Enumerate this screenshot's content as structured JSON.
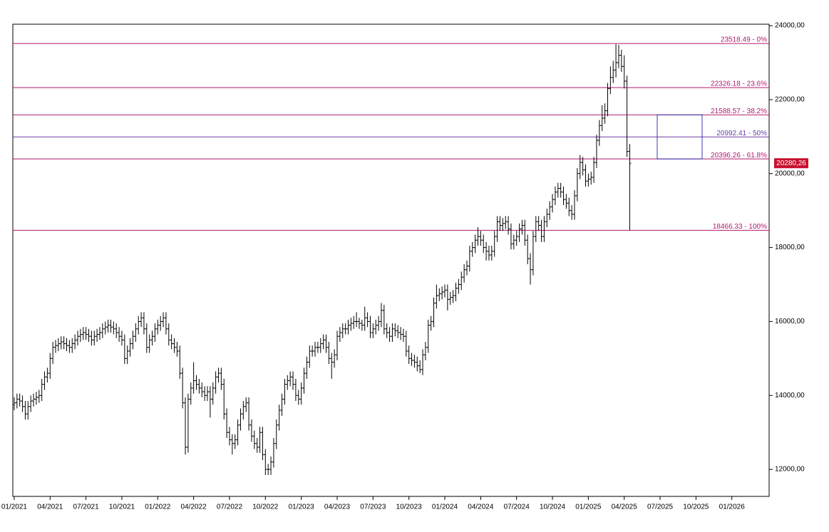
{
  "chart_data": {
    "type": "ohlc",
    "color": "#000000",
    "categories": [
      "01/2021",
      null,
      null,
      null,
      null,
      null,
      null,
      null,
      null,
      null,
      null,
      null,
      null,
      "04/2021",
      null,
      null,
      null,
      null,
      null,
      null,
      null,
      null,
      null,
      null,
      null,
      null,
      "07/2021",
      null,
      null,
      null,
      null,
      null,
      null,
      null,
      null,
      null,
      null,
      null,
      null,
      "10/2021",
      null,
      null,
      null,
      null,
      null,
      null,
      null,
      null,
      null,
      null,
      null,
      null,
      "01/2022",
      null,
      null,
      null,
      null,
      null,
      null,
      null,
      null,
      null,
      null,
      null,
      null,
      "04/2022",
      null,
      null,
      null,
      null,
      null,
      null,
      null,
      null,
      null,
      null,
      null,
      null,
      "07/2022",
      null,
      null,
      null,
      null,
      null,
      null,
      null,
      null,
      null,
      null,
      null,
      null,
      "10/2022",
      null,
      null,
      null,
      null,
      null,
      null,
      null,
      null,
      null,
      null,
      null,
      null,
      "01/2023",
      null,
      null,
      null,
      null,
      null,
      null,
      null,
      null,
      null,
      null,
      null,
      null,
      "04/2023",
      null,
      null,
      null,
      null,
      null,
      null,
      null,
      null,
      null,
      null,
      null,
      null,
      "07/2023",
      null,
      null,
      null,
      null,
      null,
      null,
      null,
      null,
      null,
      null,
      null,
      null,
      "10/2023",
      null,
      null,
      null,
      null,
      null,
      null,
      null,
      null,
      null,
      null,
      null,
      null,
      "01/2024",
      null,
      null,
      null,
      null,
      null,
      null,
      null,
      null,
      null,
      null,
      null,
      null,
      "04/2024",
      null,
      null,
      null,
      null,
      null,
      null,
      null,
      null,
      null,
      null,
      null,
      null,
      "07/2024",
      null,
      null,
      null,
      null,
      null,
      null,
      null,
      null,
      null,
      null,
      null,
      null,
      "10/2024",
      null,
      null,
      null,
      null,
      null,
      null,
      null,
      null,
      null,
      null,
      null,
      null,
      "01/2025",
      null,
      null,
      null,
      null,
      null,
      null,
      null,
      null,
      null,
      null,
      null,
      null,
      "04/2025",
      null,
      null,
      null,
      null,
      null,
      null,
      null,
      null,
      null,
      null,
      null,
      null,
      "07/2025",
      null,
      null,
      null,
      null,
      null,
      null,
      null,
      null,
      null,
      null,
      null,
      null,
      "10/2025",
      null,
      null,
      null,
      null,
      null,
      null,
      null,
      null,
      null,
      null,
      null,
      null,
      "01/2026",
      null,
      null,
      null,
      null,
      null,
      null,
      null,
      null,
      null,
      null,
      null,
      null,
      null
    ],
    "open": [
      13750,
      13800,
      13900,
      13850,
      13700,
      13500,
      13700,
      13850,
      13900,
      13950,
      14000,
      14300,
      14500,
      14600,
      15000,
      15300,
      15350,
      15400,
      15450,
      15400,
      15350,
      15300,
      15400,
      15500,
      15600,
      15650,
      15700,
      15650,
      15600,
      15500,
      15600,
      15650,
      15700,
      15800,
      15850,
      15900,
      15850,
      15800,
      15700,
      15600,
      15500,
      15000,
      15200,
      15400,
      15600,
      15800,
      16000,
      16100,
      15800,
      15300,
      15500,
      15600,
      15800,
      15900,
      16000,
      16100,
      15800,
      15500,
      15400,
      15300,
      15200,
      14600,
      13800,
      12600,
      13900,
      14200,
      14400,
      14300,
      14200,
      14100,
      14000,
      14100,
      13900,
      14200,
      14500,
      14600,
      14300,
      13500,
      13000,
      12800,
      12700,
      12800,
      13200,
      13500,
      13700,
      13800,
      13200,
      12900,
      12700,
      12600,
      13000,
      12400,
      12000,
      12000,
      12200,
      12700,
      13200,
      13600,
      13900,
      14300,
      14400,
      14500,
      14300,
      14000,
      13900,
      14200,
      14600,
      14900,
      15200,
      15200,
      15300,
      15300,
      15400,
      15500,
      15300,
      15000,
      14900,
      15100,
      15600,
      15700,
      15800,
      15800,
      15900,
      15950,
      16000,
      16000,
      15950,
      15900,
      16100,
      16000,
      15700,
      15800,
      15900,
      16000,
      16300,
      15800,
      15700,
      15600,
      15800,
      15750,
      15700,
      15650,
      15600,
      15200,
      15000,
      14950,
      14900,
      14800,
      14700,
      15100,
      15300,
      15900,
      16000,
      16500,
      16700,
      16750,
      16800,
      16850,
      16600,
      16650,
      16700,
      16900,
      17000,
      17200,
      17400,
      17500,
      17900,
      18000,
      18200,
      18300,
      18200,
      18000,
      17900,
      17800,
      17900,
      18300,
      18700,
      18600,
      18650,
      18700,
      18500,
      18100,
      18200,
      18300,
      18500,
      18600,
      18200,
      17700,
      17400,
      18300,
      18700,
      18600,
      18300,
      18700,
      18900,
      19100,
      19300,
      19500,
      19600,
      19500,
      19300,
      19200,
      19000,
      18900,
      19400,
      20000,
      20300,
      20100,
      19800,
      19850,
      19900,
      20300,
      20900,
      21300,
      21500,
      21700,
      22300,
      22600,
      22800,
      23000,
      23200,
      22900,
      22500,
      20600,
      null,
      null,
      null,
      null,
      null,
      null,
      null,
      null,
      null,
      null,
      null,
      null,
      null,
      null,
      null,
      null,
      null,
      null,
      null,
      null,
      null,
      null,
      null,
      null,
      null,
      null,
      null,
      null,
      null,
      null,
      null,
      null,
      null,
      null,
      null,
      null,
      null,
      null,
      null,
      null,
      null,
      null,
      null,
      null,
      null,
      null,
      null,
      null,
      null,
      null
    ],
    "high": [
      13950,
      14050,
      14050,
      14000,
      13850,
      13850,
      14000,
      14050,
      14100,
      14150,
      14450,
      14650,
      14750,
      15150,
      15450,
      15500,
      15550,
      15600,
      15600,
      15550,
      15500,
      15550,
      15650,
      15750,
      15800,
      15850,
      15850,
      15800,
      15750,
      15750,
      15800,
      15850,
      15950,
      16000,
      16050,
      16050,
      16000,
      15950,
      15850,
      15750,
      15650,
      15350,
      15550,
      15750,
      15950,
      16150,
      16250,
      16250,
      15950,
      15650,
      15750,
      15950,
      16050,
      16150,
      16250,
      16250,
      15950,
      15650,
      15550,
      15450,
      15350,
      14750,
      13950,
      14050,
      14350,
      14900,
      14550,
      14450,
      14350,
      14250,
      14250,
      14250,
      14350,
      14650,
      14750,
      14750,
      14450,
      13650,
      13150,
      12950,
      12950,
      13350,
      13650,
      13850,
      13950,
      13950,
      13350,
      13050,
      12850,
      13150,
      13150,
      12550,
      12150,
      12350,
      12850,
      13350,
      13750,
      14050,
      14450,
      14550,
      14650,
      14650,
      14450,
      14150,
      14350,
      14750,
      15050,
      15350,
      15350,
      15450,
      15450,
      15550,
      15650,
      15650,
      15450,
      15150,
      15250,
      15750,
      15850,
      15950,
      15950,
      16050,
      16100,
      16150,
      16250,
      16100,
      16050,
      16400,
      16250,
      16150,
      15950,
      16050,
      16150,
      16500,
      16450,
      15950,
      15850,
      15950,
      15950,
      15900,
      15850,
      15800,
      15750,
      15350,
      15150,
      15100,
      15050,
      14950,
      15250,
      15450,
      16050,
      16150,
      16650,
      17000,
      16900,
      16950,
      17000,
      17000,
      16800,
      16850,
      17050,
      17150,
      17350,
      17550,
      17650,
      18050,
      18150,
      18350,
      18550,
      18450,
      18350,
      18150,
      18050,
      18050,
      18450,
      18850,
      18850,
      18800,
      18850,
      18850,
      18650,
      18350,
      18450,
      18650,
      18750,
      18750,
      18350,
      17850,
      18450,
      18850,
      18850,
      18750,
      18850,
      19050,
      19250,
      19450,
      19650,
      19750,
      19750,
      19650,
      19450,
      19350,
      19150,
      19550,
      20150,
      20500,
      20450,
      20250,
      20000,
      20050,
      20450,
      21050,
      21450,
      21850,
      21900,
      22450,
      22900,
      23050,
      23500,
      23480,
      23350,
      23200,
      22650,
      20800,
      null,
      null,
      null,
      null,
      null,
      null,
      null,
      null,
      null,
      null,
      null,
      null,
      null,
      null,
      null,
      null,
      null,
      null,
      null,
      null,
      null,
      null,
      null,
      null,
      null,
      null,
      null,
      null,
      null,
      null,
      null,
      null,
      null,
      null,
      null,
      null,
      null,
      null,
      null,
      null,
      null,
      null,
      null,
      null,
      null,
      null,
      null,
      null,
      null,
      null
    ],
    "low": [
      13600,
      13650,
      13700,
      13550,
      13350,
      13350,
      13550,
      13700,
      13750,
      13800,
      13850,
      14150,
      14350,
      14450,
      14850,
      15150,
      15200,
      15250,
      15250,
      15200,
      15150,
      15150,
      15250,
      15350,
      15450,
      15500,
      15500,
      15450,
      15350,
      15350,
      15450,
      15500,
      15550,
      15650,
      15700,
      15700,
      15650,
      15550,
      15450,
      15350,
      14850,
      14850,
      15050,
      15250,
      15450,
      15650,
      15850,
      15650,
      15150,
      15150,
      15350,
      15450,
      15650,
      15750,
      15850,
      15650,
      15350,
      15250,
      15150,
      15050,
      14450,
      13650,
      12400,
      12450,
      13750,
      14050,
      14150,
      14050,
      13950,
      13850,
      13850,
      13400,
      13750,
      14050,
      14350,
      14150,
      13350,
      12850,
      12650,
      12400,
      12550,
      12650,
      13050,
      13350,
      13550,
      13050,
      12750,
      12550,
      12450,
      12450,
      12250,
      11850,
      11850,
      11850,
      12050,
      12550,
      13050,
      13450,
      13750,
      14150,
      14250,
      14150,
      13850,
      13750,
      13750,
      14050,
      14450,
      14750,
      15050,
      15050,
      15150,
      15150,
      15250,
      15150,
      14850,
      14450,
      14750,
      14950,
      15450,
      15550,
      15650,
      15650,
      15750,
      15800,
      15850,
      15800,
      15750,
      15750,
      15850,
      15550,
      15550,
      15650,
      15750,
      15850,
      15650,
      15550,
      15450,
      15450,
      15600,
      15550,
      15500,
      15450,
      15050,
      14850,
      14800,
      14750,
      14650,
      14600,
      14550,
      14950,
      15150,
      15750,
      15850,
      16350,
      16550,
      16600,
      16650,
      16300,
      16450,
      16500,
      16550,
      16750,
      16850,
      17050,
      17250,
      17350,
      17750,
      17850,
      18050,
      18050,
      17850,
      17650,
      17650,
      17650,
      17750,
      18150,
      18450,
      18450,
      18500,
      18350,
      17950,
      17950,
      18050,
      18150,
      18350,
      18050,
      17550,
      17000,
      17250,
      18150,
      18450,
      18150,
      18150,
      18550,
      18750,
      18950,
      19150,
      19350,
      19350,
      19150,
      19050,
      18850,
      18750,
      18750,
      19250,
      19850,
      19950,
      19650,
      19650,
      19700,
      19750,
      20150,
      20750,
      21150,
      21350,
      21550,
      22150,
      22450,
      22600,
      22850,
      22750,
      22300,
      20450,
      18466.33,
      null,
      null,
      null,
      null,
      null,
      null,
      null,
      null,
      null,
      null,
      null,
      null,
      null,
      null,
      null,
      null,
      null,
      null,
      null,
      null,
      null,
      null,
      null,
      null,
      null,
      null,
      null,
      null,
      null,
      null,
      null,
      null,
      null,
      null,
      null,
      null,
      null,
      null,
      null,
      null,
      null,
      null,
      null,
      null,
      null,
      null,
      null,
      null,
      null,
      null
    ],
    "close": [
      13800,
      13900,
      13850,
      13700,
      13500,
      13700,
      13850,
      13900,
      13950,
      14000,
      14300,
      14500,
      14600,
      15000,
      15300,
      15350,
      15400,
      15450,
      15400,
      15350,
      15300,
      15400,
      15500,
      15600,
      15650,
      15700,
      15650,
      15600,
      15500,
      15600,
      15650,
      15700,
      15800,
      15850,
      15900,
      15850,
      15800,
      15700,
      15600,
      15500,
      15000,
      15200,
      15400,
      15600,
      15800,
      16000,
      16100,
      15800,
      15300,
      15500,
      15600,
      15800,
      15900,
      16000,
      16100,
      15800,
      15500,
      15400,
      15300,
      15200,
      14600,
      13800,
      12600,
      13900,
      14200,
      14400,
      14300,
      14200,
      14100,
      14000,
      14100,
      13900,
      14200,
      14500,
      14600,
      14300,
      13500,
      13000,
      12800,
      12700,
      12800,
      13200,
      13500,
      13700,
      13800,
      13200,
      12900,
      12700,
      12600,
      13000,
      12400,
      12000,
      12000,
      12200,
      12700,
      13200,
      13600,
      13900,
      14300,
      14400,
      14500,
      14300,
      14000,
      13900,
      14200,
      14600,
      14900,
      15200,
      15200,
      15300,
      15300,
      15400,
      15500,
      15300,
      15000,
      14900,
      15100,
      15600,
      15700,
      15800,
      15800,
      15900,
      15950,
      16000,
      16000,
      15950,
      15900,
      16100,
      16000,
      15700,
      15800,
      15900,
      16000,
      16300,
      15800,
      15700,
      15600,
      15800,
      15750,
      15700,
      15650,
      15600,
      15200,
      15000,
      14950,
      14900,
      14800,
      14700,
      15100,
      15300,
      15900,
      16000,
      16500,
      16700,
      16750,
      16800,
      16850,
      16600,
      16650,
      16700,
      16900,
      17000,
      17200,
      17400,
      17500,
      17900,
      18000,
      18200,
      18300,
      18200,
      18000,
      17900,
      17800,
      17900,
      18300,
      18700,
      18600,
      18650,
      18700,
      18500,
      18100,
      18200,
      18300,
      18500,
      18600,
      18200,
      17700,
      17400,
      18300,
      18700,
      18600,
      18300,
      18700,
      18900,
      19100,
      19300,
      19500,
      19600,
      19500,
      19300,
      19200,
      19000,
      18900,
      19400,
      20000,
      20300,
      20100,
      19800,
      19850,
      19900,
      20300,
      20900,
      21300,
      21500,
      21700,
      22300,
      22600,
      22800,
      23000,
      23200,
      22900,
      22500,
      20600,
      20280.26,
      null,
      null,
      null,
      null,
      null,
      null,
      null,
      null,
      null,
      null,
      null,
      null,
      null,
      null,
      null,
      null,
      null,
      null,
      null,
      null,
      null,
      null,
      null,
      null,
      null,
      null,
      null,
      null,
      null,
      null,
      null,
      null,
      null,
      null,
      null,
      null,
      null,
      null,
      null,
      null,
      null,
      null,
      null,
      null,
      null,
      null,
      null,
      null,
      null,
      null
    ],
    "ylim": [
      11270,
      24040
    ],
    "yticks": [
      {
        "value": 12000,
        "label": "12000,00"
      },
      {
        "value": 14000,
        "label": "14000,00"
      },
      {
        "value": 16000,
        "label": "16000,00"
      },
      {
        "value": 18000,
        "label": "18000,00"
      },
      {
        "value": 20000,
        "label": "20000,00"
      },
      {
        "value": 22000,
        "label": "22000,00"
      },
      {
        "value": 24000,
        "label": "24000,00"
      }
    ],
    "levels": [
      {
        "value": 23518.49,
        "label": "23518.49 - 0%",
        "color": "#b0186e"
      },
      {
        "value": 22326.18,
        "label": "22326.18 - 23.6%",
        "color": "#b0186e"
      },
      {
        "value": 21588.57,
        "label": "21588.57 - 38.2%",
        "color": "#b0186e"
      },
      {
        "value": 20992.41,
        "label": "20992.41 - 50%",
        "color": "#6a3fa8"
      },
      {
        "value": 20396.26,
        "label": "20396.26 - 61.8%",
        "color": "#b0186e"
      },
      {
        "value": 18466.33,
        "label": "18466.33 - 100%",
        "color": "#b0186e"
      }
    ],
    "last_price": {
      "value": 20280.26,
      "label": "20280,26",
      "color": "#c8102e"
    },
    "box_color": "#3a3ab0"
  }
}
